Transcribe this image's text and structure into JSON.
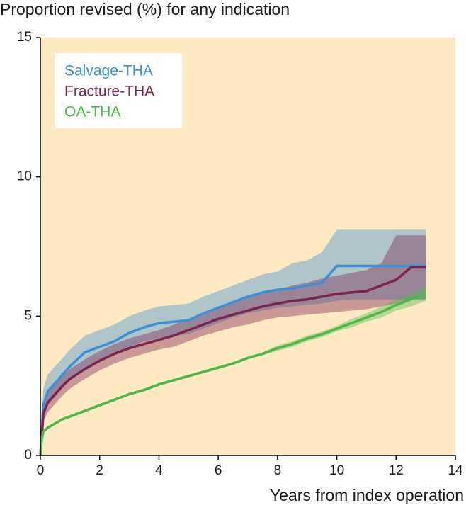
{
  "chart_data": {
    "type": "line",
    "title": "Proportion revised (%) for any indication",
    "x_label": "Years from index operation",
    "x": [
      0,
      0.05,
      0.1,
      0.25,
      0.5,
      0.75,
      1,
      1.5,
      2,
      2.5,
      3,
      3.5,
      4,
      4.5,
      5,
      5.5,
      6,
      6.5,
      7,
      7.5,
      8,
      8.5,
      9,
      9.5,
      10,
      10.5,
      11,
      11.5,
      12,
      12.5,
      13
    ],
    "series": [
      {
        "name": "Salvage-THA",
        "color": "#3b8fd4",
        "values": [
          0,
          0.8,
          1.8,
          2.3,
          2.6,
          2.9,
          3.2,
          3.7,
          3.9,
          4.1,
          4.4,
          4.6,
          4.75,
          4.8,
          4.85,
          5.1,
          5.3,
          5.5,
          5.7,
          5.85,
          5.95,
          6.0,
          6.1,
          6.2,
          6.8,
          6.8,
          6.8,
          6.8,
          6.8,
          6.8,
          6.8
        ],
        "lower": [
          0,
          0.5,
          1.3,
          1.8,
          2.1,
          2.4,
          2.7,
          3.1,
          3.4,
          3.6,
          3.9,
          4.1,
          4.2,
          4.3,
          4.35,
          4.55,
          4.75,
          4.95,
          5.1,
          5.2,
          5.3,
          5.35,
          5.4,
          5.45,
          5.55,
          5.6,
          5.6,
          5.6,
          5.6,
          5.6,
          5.6
        ],
        "upper": [
          0,
          1.2,
          2.4,
          2.9,
          3.2,
          3.5,
          3.8,
          4.3,
          4.5,
          4.7,
          5.0,
          5.2,
          5.35,
          5.4,
          5.45,
          5.7,
          5.9,
          6.1,
          6.3,
          6.5,
          6.6,
          6.9,
          7.0,
          7.3,
          8.1,
          8.1,
          8.1,
          8.1,
          8.1,
          8.1,
          8.1
        ]
      },
      {
        "name": "Fracture-THA",
        "color": "#7a2452",
        "values": [
          0,
          0.7,
          1.5,
          1.9,
          2.2,
          2.5,
          2.75,
          3.1,
          3.4,
          3.65,
          3.85,
          4.0,
          4.15,
          4.3,
          4.5,
          4.7,
          4.9,
          5.05,
          5.2,
          5.35,
          5.45,
          5.55,
          5.6,
          5.7,
          5.8,
          5.85,
          5.9,
          6.1,
          6.3,
          6.75,
          6.75
        ],
        "lower": [
          0,
          0.45,
          1.2,
          1.55,
          1.85,
          2.15,
          2.4,
          2.75,
          3.05,
          3.3,
          3.5,
          3.65,
          3.8,
          3.9,
          4.1,
          4.3,
          4.45,
          4.6,
          4.7,
          4.85,
          4.95,
          5.0,
          5.05,
          5.1,
          5.15,
          5.2,
          5.25,
          5.35,
          5.45,
          5.6,
          5.6
        ],
        "upper": [
          0,
          1.0,
          1.8,
          2.25,
          2.55,
          2.85,
          3.1,
          3.45,
          3.75,
          4.0,
          4.2,
          4.35,
          4.5,
          4.7,
          4.9,
          5.1,
          5.3,
          5.5,
          5.7,
          5.85,
          5.95,
          6.1,
          6.2,
          6.35,
          6.45,
          6.55,
          6.65,
          6.9,
          7.9,
          7.9,
          7.9
        ]
      },
      {
        "name": "OA-THA",
        "color": "#4cb848",
        "values": [
          0,
          0.6,
          0.85,
          1.0,
          1.15,
          1.3,
          1.4,
          1.6,
          1.8,
          2.0,
          2.2,
          2.35,
          2.55,
          2.7,
          2.85,
          3.0,
          3.15,
          3.3,
          3.5,
          3.65,
          3.85,
          4.0,
          4.2,
          4.35,
          4.55,
          4.75,
          4.95,
          5.15,
          5.4,
          5.6,
          5.8
        ],
        "lower": [
          0,
          0.55,
          0.8,
          0.95,
          1.1,
          1.25,
          1.35,
          1.55,
          1.75,
          1.95,
          2.15,
          2.3,
          2.5,
          2.65,
          2.8,
          2.95,
          3.1,
          3.25,
          3.45,
          3.6,
          3.75,
          3.9,
          4.1,
          4.25,
          4.45,
          4.6,
          4.8,
          4.95,
          5.2,
          5.35,
          5.55
        ],
        "upper": [
          0,
          0.65,
          0.9,
          1.05,
          1.2,
          1.35,
          1.45,
          1.65,
          1.85,
          2.05,
          2.25,
          2.4,
          2.6,
          2.75,
          2.9,
          3.05,
          3.2,
          3.35,
          3.55,
          3.7,
          3.95,
          4.1,
          4.3,
          4.45,
          4.65,
          4.9,
          5.1,
          5.35,
          5.6,
          5.85,
          6.05
        ]
      }
    ],
    "xlim": [
      0,
      14
    ],
    "xticks": [
      0,
      2,
      4,
      6,
      8,
      10,
      12,
      14
    ],
    "ylim": [
      0,
      15
    ],
    "yticks": [
      0,
      5,
      10,
      15
    ],
    "background": "#fde9c2",
    "legend": "upper left"
  }
}
